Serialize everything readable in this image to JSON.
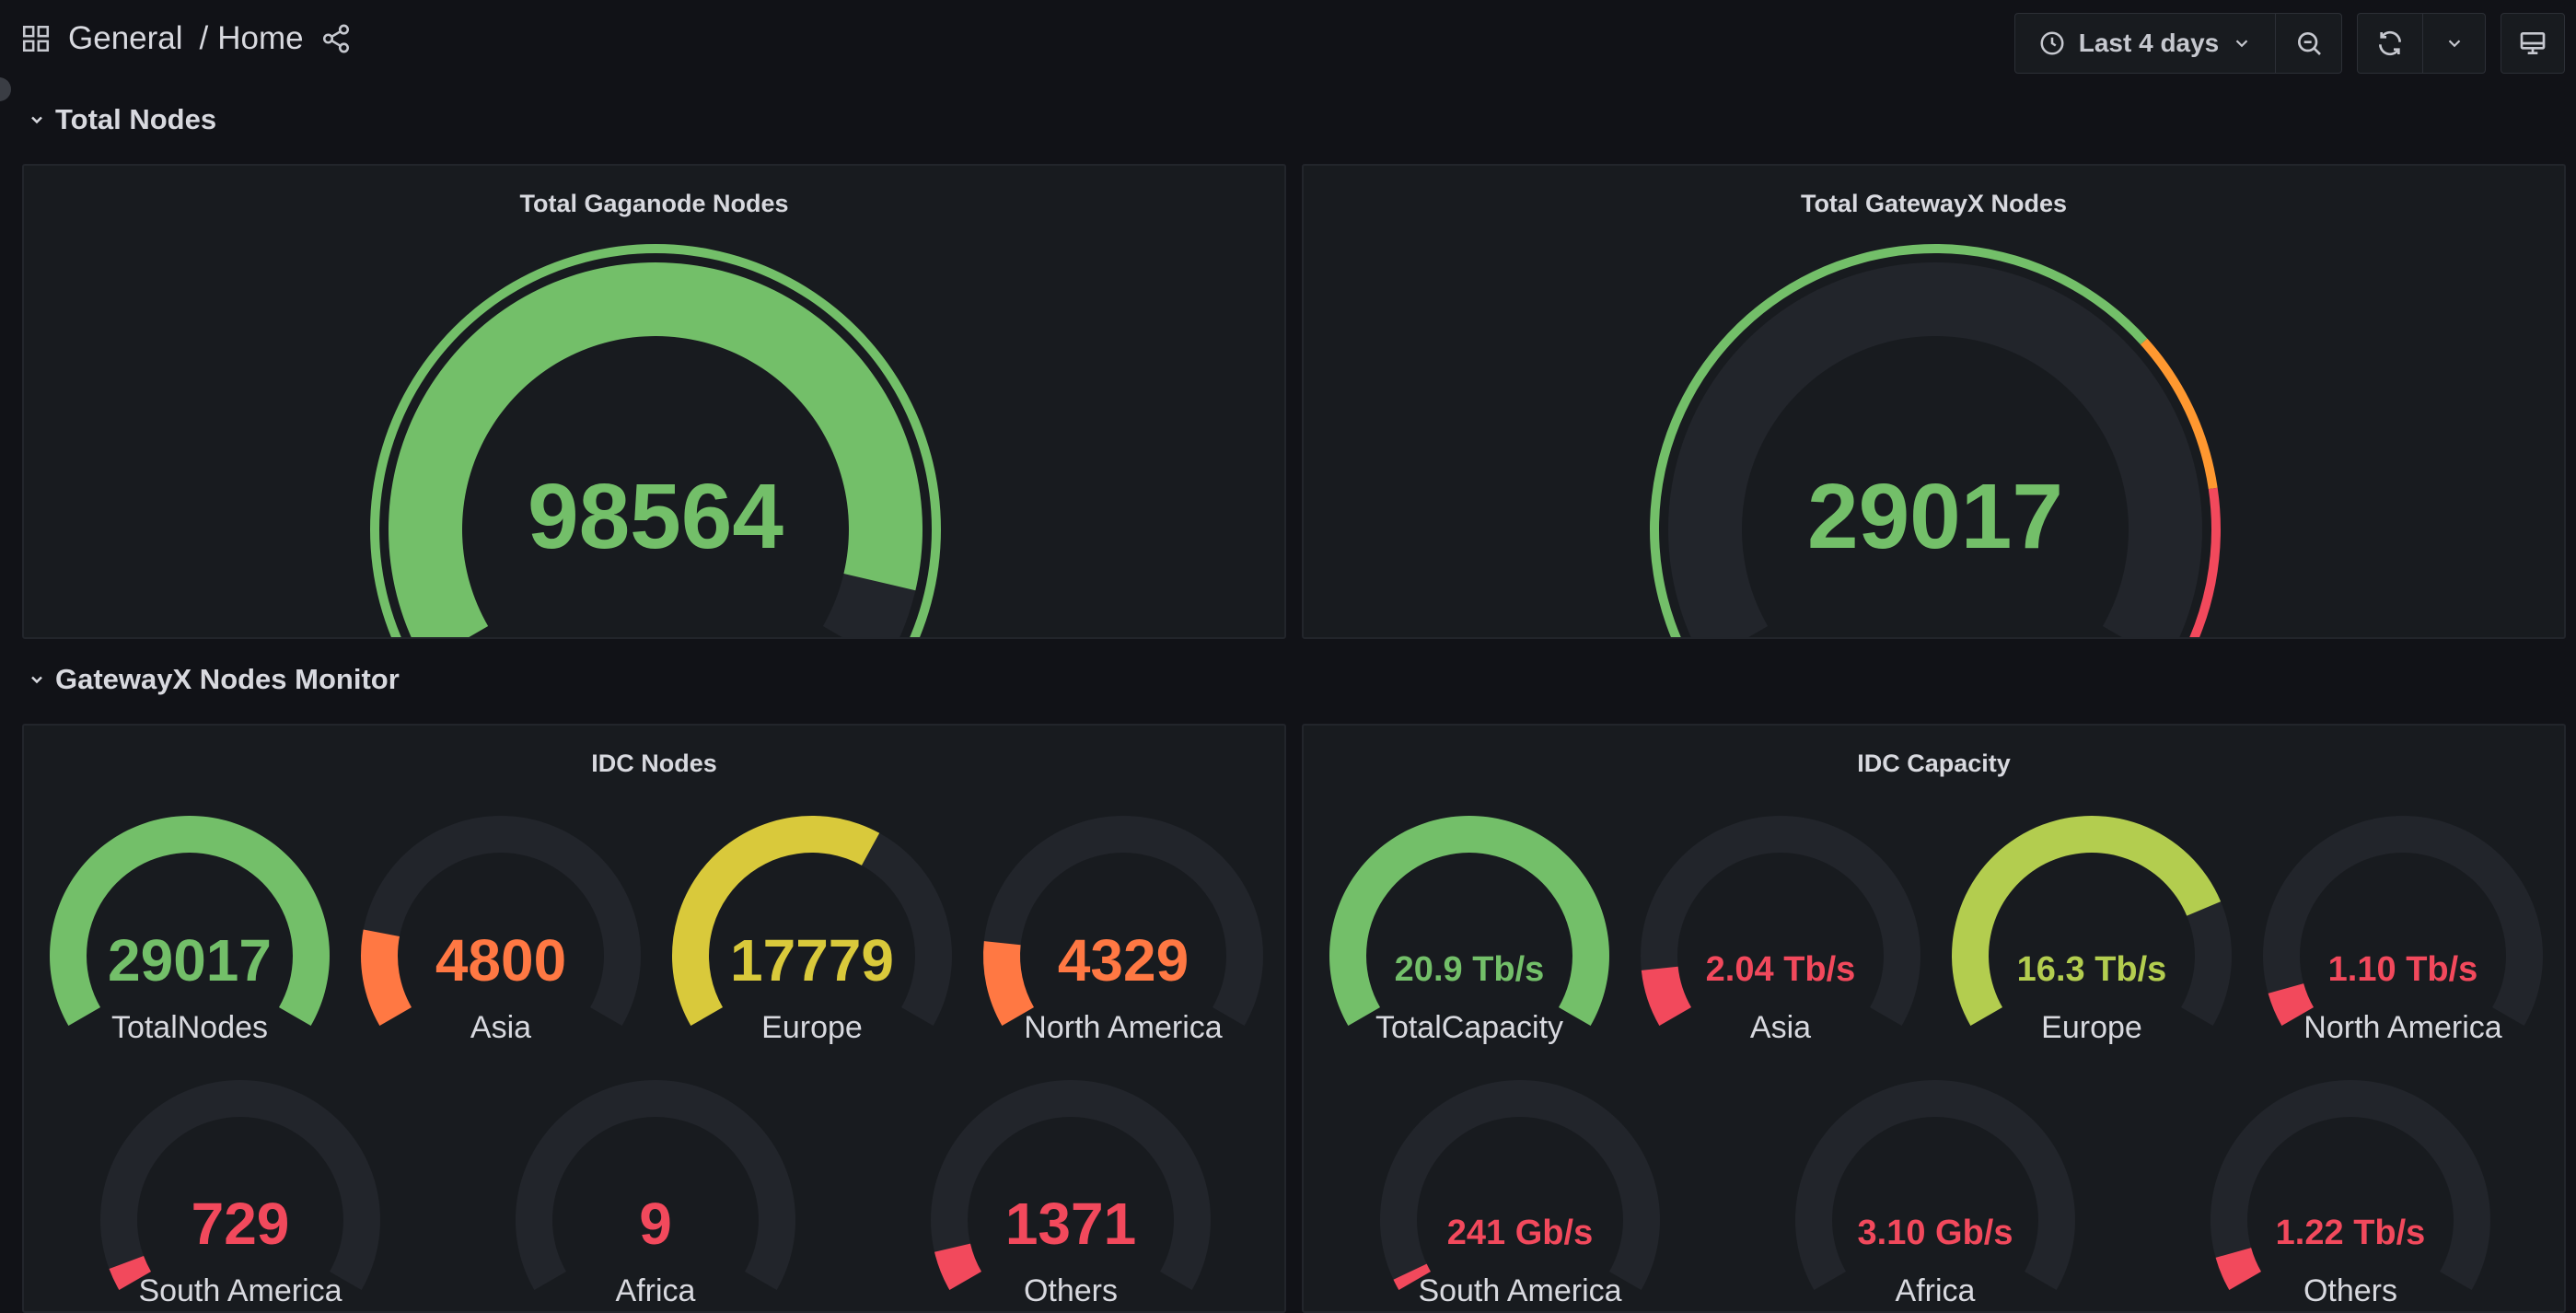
{
  "header": {
    "folder": "General",
    "separator": "/",
    "page": "Home",
    "time_range": "Last 4 days"
  },
  "icons": [
    "dashboards-grid-icon",
    "share-icon",
    "clock-icon",
    "chevron-down-icon",
    "zoom-out-icon",
    "refresh-icon",
    "tv-mode-icon"
  ],
  "rows": [
    {
      "title": "Total Nodes"
    },
    {
      "title": "GatewayX Nodes Monitor"
    }
  ],
  "panels": {
    "gaganode": {
      "title": "Total Gaganode Nodes",
      "value": "98564",
      "value_num": 98564,
      "fill_fraction": 0.93,
      "color": "#73bf69",
      "thresholds": [
        {
          "from": 0,
          "color": "#73bf69"
        }
      ]
    },
    "gatewayx": {
      "title": "Total GatewayX Nodes",
      "value": "29017",
      "value_num": 29017,
      "fill_fraction": 0.0,
      "color": "#73bf69",
      "thresholds": [
        {
          "from": 0.0,
          "to": 0.7,
          "color": "#73bf69"
        },
        {
          "from": 0.7,
          "to": 0.84,
          "color": "#ff9830"
        },
        {
          "from": 0.84,
          "to": 1.0,
          "color": "#f2495c"
        }
      ]
    },
    "idc_nodes": {
      "title": "IDC Nodes",
      "gauges": [
        {
          "label": "TotalNodes",
          "value": "29017",
          "fill_fraction": 1.0,
          "color": "#73bf69"
        },
        {
          "label": "Asia",
          "value": "4800",
          "fill_fraction": 0.17,
          "color": "#ff7843"
        },
        {
          "label": "Europe",
          "value": "17779",
          "fill_fraction": 0.62,
          "color": "#d9c93b"
        },
        {
          "label": "North America",
          "value": "4329",
          "fill_fraction": 0.15,
          "color": "#ff7843"
        },
        {
          "label": "South America",
          "value": "729",
          "fill_fraction": 0.04,
          "color": "#f2495c"
        },
        {
          "label": "Africa",
          "value": "9",
          "fill_fraction": 0.0,
          "color": "#f2495c"
        },
        {
          "label": "Others",
          "value": "1371",
          "fill_fraction": 0.07,
          "color": "#f2495c"
        }
      ]
    },
    "idc_capacity": {
      "title": "IDC Capacity",
      "gauges": [
        {
          "label": "TotalCapacity",
          "value": "20.9 Tb/s",
          "fill_fraction": 1.0,
          "color": "#73bf69"
        },
        {
          "label": "Asia",
          "value": "2.04 Tb/s",
          "fill_fraction": 0.1,
          "color": "#f2495c"
        },
        {
          "label": "Europe",
          "value": "16.3 Tb/s",
          "fill_fraction": 0.78,
          "color": "#b3cd4f"
        },
        {
          "label": "North America",
          "value": "1.10 Tb/s",
          "fill_fraction": 0.06,
          "color": "#f2495c"
        },
        {
          "label": "South America",
          "value": "241 Gb/s",
          "fill_fraction": 0.02,
          "color": "#f2495c"
        },
        {
          "label": "Africa",
          "value": "3.10 Gb/s",
          "fill_fraction": 0.0,
          "color": "#f2495c"
        },
        {
          "label": "Others",
          "value": "1.22 Tb/s",
          "fill_fraction": 0.06,
          "color": "#f2495c"
        }
      ]
    }
  },
  "colors": {
    "background": "#111217",
    "panel": "#181b1f",
    "track": "#22252b",
    "green": "#73bf69",
    "orange": "#ff9830",
    "red": "#f2495c"
  }
}
